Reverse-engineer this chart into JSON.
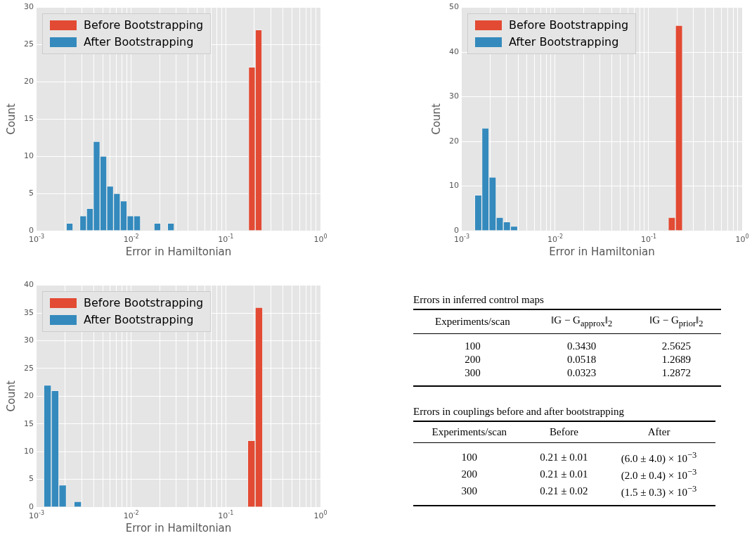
{
  "chart_data": [
    {
      "type": "histogram",
      "xlabel": "Error in Hamiltonian",
      "ylabel": "Count",
      "log": "x",
      "grid": true,
      "legend": "top left",
      "xlim": [
        0.001,
        1
      ],
      "ylim": [
        0,
        30
      ],
      "yticks": [
        0,
        5,
        10,
        15,
        20,
        25,
        30
      ],
      "xticks": [
        {
          "value": 0.001,
          "label": "10$^{-3}$"
        },
        {
          "value": 0.002,
          "label": null
        },
        {
          "value": 0.003,
          "label": null
        },
        {
          "value": 0.004,
          "label": null
        },
        {
          "value": 0.005,
          "label": null
        },
        {
          "value": 0.006,
          "label": null
        },
        {
          "value": 0.007,
          "label": null
        },
        {
          "value": 0.008,
          "label": null
        },
        {
          "value": 0.009,
          "label": null
        },
        {
          "value": 0.01,
          "label": "10$^{-2}$"
        },
        {
          "value": 0.02,
          "label": null
        },
        {
          "value": 0.03,
          "label": null
        },
        {
          "value": 0.04,
          "label": null
        },
        {
          "value": 0.05,
          "label": null
        },
        {
          "value": 0.06,
          "label": null
        },
        {
          "value": 0.07,
          "label": null
        },
        {
          "value": 0.08,
          "label": null
        },
        {
          "value": 0.09,
          "label": null
        },
        {
          "value": 0.1,
          "label": "10$^{-1}$"
        },
        {
          "value": 0.2,
          "label": null
        },
        {
          "value": 0.3,
          "label": null
        },
        {
          "value": 0.4,
          "label": null
        },
        {
          "value": 0.5,
          "label": null
        },
        {
          "value": 0.6,
          "label": null
        },
        {
          "value": 0.7,
          "label": null
        },
        {
          "value": 0.8,
          "label": null
        },
        {
          "value": 0.9,
          "label": null
        },
        {
          "value": 1,
          "label": "10$^{0}$"
        }
      ],
      "bins": [
        0.00206,
        0.002428,
        0.002861,
        0.003373,
        0.003975,
        0.004684,
        0.005518,
        0.006504,
        0.007665,
        0.009032,
        0.010644,
        0.01254,
        0.01478,
        0.01742,
        0.02053,
        0.02419,
        0.02851,
        0.0336,
        0.0396,
        0.04667,
        0.055,
        0.06481,
        0.07637,
        0.09,
        0.1061,
        0.125,
        0.1473,
        0.1736,
        0.2046,
        0.2411
      ],
      "series": [
        {
          "name": "Before Bootstrapping",
          "color": "#e24a33",
          "values": [
            0,
            0,
            0,
            0,
            0,
            0,
            0,
            0,
            0,
            0,
            0,
            0,
            0,
            0,
            0,
            0,
            0,
            0,
            0,
            0,
            0,
            0,
            0,
            0,
            0,
            0,
            0,
            22,
            27
          ]
        },
        {
          "name": "After Bootstrapping",
          "color": "#348abd",
          "values": [
            1,
            0,
            2,
            3,
            12,
            10,
            6,
            5,
            4,
            2,
            2,
            0,
            0,
            1,
            0,
            1,
            0,
            0,
            0,
            0,
            0,
            0,
            0,
            0,
            0,
            0,
            0,
            0,
            0
          ]
        }
      ]
    },
    {
      "type": "histogram",
      "xlabel": "Error in Hamiltonian",
      "ylabel": "Count",
      "log": "x",
      "grid": true,
      "legend": "top left",
      "xlim": [
        0.001,
        1
      ],
      "ylim": [
        0,
        50
      ],
      "yticks": [
        0,
        10,
        20,
        30,
        40,
        50
      ],
      "xticks": [
        {
          "value": 0.001,
          "label": "10$^{-3}$"
        },
        {
          "value": 0.002,
          "label": null
        },
        {
          "value": 0.003,
          "label": null
        },
        {
          "value": 0.004,
          "label": null
        },
        {
          "value": 0.005,
          "label": null
        },
        {
          "value": 0.006,
          "label": null
        },
        {
          "value": 0.007,
          "label": null
        },
        {
          "value": 0.008,
          "label": null
        },
        {
          "value": 0.009,
          "label": null
        },
        {
          "value": 0.01,
          "label": "10$^{-2}$"
        },
        {
          "value": 0.02,
          "label": null
        },
        {
          "value": 0.03,
          "label": null
        },
        {
          "value": 0.04,
          "label": null
        },
        {
          "value": 0.05,
          "label": null
        },
        {
          "value": 0.06,
          "label": null
        },
        {
          "value": 0.07,
          "label": null
        },
        {
          "value": 0.08,
          "label": null
        },
        {
          "value": 0.09,
          "label": null
        },
        {
          "value": 0.1,
          "label": "10$^{-1}$"
        },
        {
          "value": 0.2,
          "label": null
        },
        {
          "value": 0.3,
          "label": null
        },
        {
          "value": 0.4,
          "label": null
        },
        {
          "value": 0.5,
          "label": null
        },
        {
          "value": 0.6,
          "label": null
        },
        {
          "value": 0.7,
          "label": null
        },
        {
          "value": 0.8,
          "label": null
        },
        {
          "value": 0.9,
          "label": null
        },
        {
          "value": 1,
          "label": "10$^{0}$"
        }
      ],
      "bins": [
        0.001374,
        0.00164,
        0.001956,
        0.002334,
        0.002785,
        0.003323,
        0.003965,
        0.004732,
        0.005645,
        0.006736,
        0.008037,
        0.00959,
        0.01144,
        0.01365,
        0.01629,
        0.01944,
        0.02319,
        0.02767,
        0.03302,
        0.0394,
        0.047,
        0.05609,
        0.06692,
        0.07986,
        0.09528,
        0.1137,
        0.1356,
        0.1618,
        0.1931,
        0.2304
      ],
      "series": [
        {
          "name": "Before Bootstrapping",
          "color": "#e24a33",
          "values": [
            0,
            0,
            0,
            0,
            0,
            0,
            0,
            0,
            0,
            0,
            0,
            0,
            0,
            0,
            0,
            0,
            0,
            0,
            0,
            0,
            0,
            0,
            0,
            0,
            0,
            0,
            0,
            3,
            46
          ]
        },
        {
          "name": "After Bootstrapping",
          "color": "#348abd",
          "values": [
            8,
            23,
            12,
            3,
            2,
            1,
            0,
            0,
            0,
            0,
            0,
            0,
            0,
            0,
            0,
            0,
            0,
            0,
            0,
            0,
            0,
            0,
            0,
            0,
            0,
            0,
            0,
            0,
            0
          ]
        }
      ]
    },
    {
      "type": "histogram",
      "xlabel": "Error in Hamiltonian",
      "ylabel": "Count",
      "log": "x",
      "grid": true,
      "legend": "top left",
      "xlim": [
        0.001,
        1
      ],
      "ylim": [
        0,
        40
      ],
      "yticks": [
        0,
        5,
        10,
        15,
        20,
        25,
        30,
        35,
        40
      ],
      "xticks": [
        {
          "value": 0.001,
          "label": "10$^{-3}$"
        },
        {
          "value": 0.002,
          "label": null
        },
        {
          "value": 0.003,
          "label": null
        },
        {
          "value": 0.004,
          "label": null
        },
        {
          "value": 0.005,
          "label": null
        },
        {
          "value": 0.006,
          "label": null
        },
        {
          "value": 0.007,
          "label": null
        },
        {
          "value": 0.008,
          "label": null
        },
        {
          "value": 0.009,
          "label": null
        },
        {
          "value": 0.01,
          "label": "10$^{-2}$"
        },
        {
          "value": 0.02,
          "label": null
        },
        {
          "value": 0.03,
          "label": null
        },
        {
          "value": 0.04,
          "label": null
        },
        {
          "value": 0.05,
          "label": null
        },
        {
          "value": 0.06,
          "label": null
        },
        {
          "value": 0.07,
          "label": null
        },
        {
          "value": 0.08,
          "label": null
        },
        {
          "value": 0.09,
          "label": null
        },
        {
          "value": 0.1,
          "label": "10$^{-1}$"
        },
        {
          "value": 0.2,
          "label": null
        },
        {
          "value": 0.3,
          "label": null
        },
        {
          "value": 0.4,
          "label": null
        },
        {
          "value": 0.5,
          "label": null
        },
        {
          "value": 0.6,
          "label": null
        },
        {
          "value": 0.7,
          "label": null
        },
        {
          "value": 0.8,
          "label": null
        },
        {
          "value": 0.9,
          "label": null
        },
        {
          "value": 1,
          "label": "10$^{0}$"
        }
      ],
      "bins": [
        0.001192,
        0.001432,
        0.001721,
        0.002068,
        0.002486,
        0.002987,
        0.003589,
        0.004313,
        0.005183,
        0.006226,
        0.007482,
        0.008991,
        0.0108,
        0.01298,
        0.0156,
        0.01875,
        0.02252,
        0.02707,
        0.03252,
        0.03907,
        0.04696,
        0.05642,
        0.06779,
        0.08147,
        0.0979,
        0.1176,
        0.1413,
        0.1699,
        0.2041,
        0.2453
      ],
      "series": [
        {
          "name": "Before Bootstrapping",
          "color": "#e24a33",
          "values": [
            0,
            0,
            0,
            0,
            0,
            0,
            0,
            0,
            0,
            0,
            0,
            0,
            0,
            0,
            0,
            0,
            0,
            0,
            0,
            0,
            0,
            0,
            0,
            0,
            0,
            0,
            0,
            12,
            36
          ]
        },
        {
          "name": "After Bootstrapping",
          "color": "#348abd",
          "values": [
            22,
            21,
            4,
            0,
            1,
            0,
            0,
            0,
            0,
            0,
            0,
            0,
            0,
            0,
            0,
            0,
            0,
            0,
            0,
            0,
            0,
            0,
            0,
            0,
            0,
            0,
            0,
            0,
            0
          ]
        }
      ]
    },
    {
      "type": "other",
      "title": "Errors in inferred control maps",
      "annotations": [
        "Experiments/scan",
        "‖G − G$_{approx}$‖$_{2}$",
        "‖G − G$_{prior}$‖$_{2}$",
        "100",
        "0.3430",
        "2.5625",
        "200",
        "0.0518",
        "1.2689",
        "300",
        "0.0323",
        "1.2872"
      ]
    },
    {
      "type": "other",
      "title": "Errors in couplings before and after bootstrapping",
      "annotations": [
        "Experiments/scan",
        "Before",
        "After",
        "100",
        "0.21 ± 0.01",
        "(6.0 ± 4.0) × 10$^{−3}$",
        "200",
        "0.21 ± 0.01",
        "(2.0 ± 0.4) × 10$^{−3}$",
        "300",
        "0.21 ± 0.02",
        "(1.5 ± 0.3) × 10$^{−3}$"
      ]
    }
  ]
}
